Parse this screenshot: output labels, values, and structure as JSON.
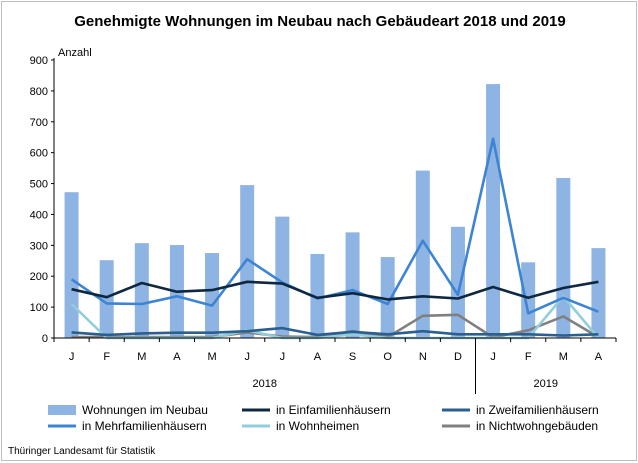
{
  "chart_data": {
    "type": "bar",
    "title": "Genehmigte Wohnungen im Neubau nach Gebäudeart 2018 und 2019",
    "ylabel": "Anzahl",
    "ylim": [
      0,
      900
    ],
    "yticks": [
      0,
      100,
      200,
      300,
      400,
      500,
      600,
      700,
      800,
      900
    ],
    "categories": [
      "J",
      "F",
      "M",
      "A",
      "M",
      "J",
      "J",
      "A",
      "S",
      "O",
      "N",
      "D",
      "J",
      "F",
      "M",
      "A"
    ],
    "years": [
      {
        "label": "2018",
        "start": 0,
        "end": 11
      },
      {
        "label": "2019",
        "start": 12,
        "end": 15
      }
    ],
    "bar_series": {
      "name": "Wohnungen im Neubau",
      "color": "#8eb4e3",
      "values": [
        472,
        252,
        307,
        301,
        275,
        495,
        393,
        272,
        342,
        262,
        542,
        360,
        822,
        245,
        518,
        291
      ]
    },
    "line_series": [
      {
        "name": "in Einfamilienhäusern",
        "color": "#0e2841",
        "values": [
          158,
          132,
          178,
          150,
          155,
          182,
          176,
          130,
          145,
          125,
          135,
          128,
          165,
          130,
          162,
          182
        ]
      },
      {
        "name": "in Zweifamilienhäusern",
        "color": "#2b5f8f",
        "values": [
          18,
          10,
          15,
          17,
          17,
          22,
          32,
          10,
          20,
          12,
          22,
          12,
          12,
          12,
          8,
          12
        ]
      },
      {
        "name": "in Mehrfamilienhäusern",
        "color": "#3e84d4",
        "values": [
          190,
          112,
          110,
          135,
          105,
          255,
          180,
          128,
          155,
          110,
          315,
          140,
          645,
          80,
          130,
          85
        ]
      },
      {
        "name": "in Wohnheimen",
        "color": "#92cddc",
        "values": [
          110,
          0,
          0,
          0,
          0,
          25,
          0,
          0,
          12,
          0,
          0,
          0,
          0,
          0,
          135,
          0
        ]
      },
      {
        "name": "in Nichtwohngebäuden",
        "color": "#808080",
        "values": [
          3,
          3,
          3,
          3,
          3,
          18,
          5,
          3,
          22,
          3,
          72,
          75,
          2,
          25,
          70,
          3
        ]
      }
    ],
    "legend_position": "bottom",
    "grid": false
  },
  "footer": {
    "source": "Thüringer Landesamt für Statistik"
  }
}
